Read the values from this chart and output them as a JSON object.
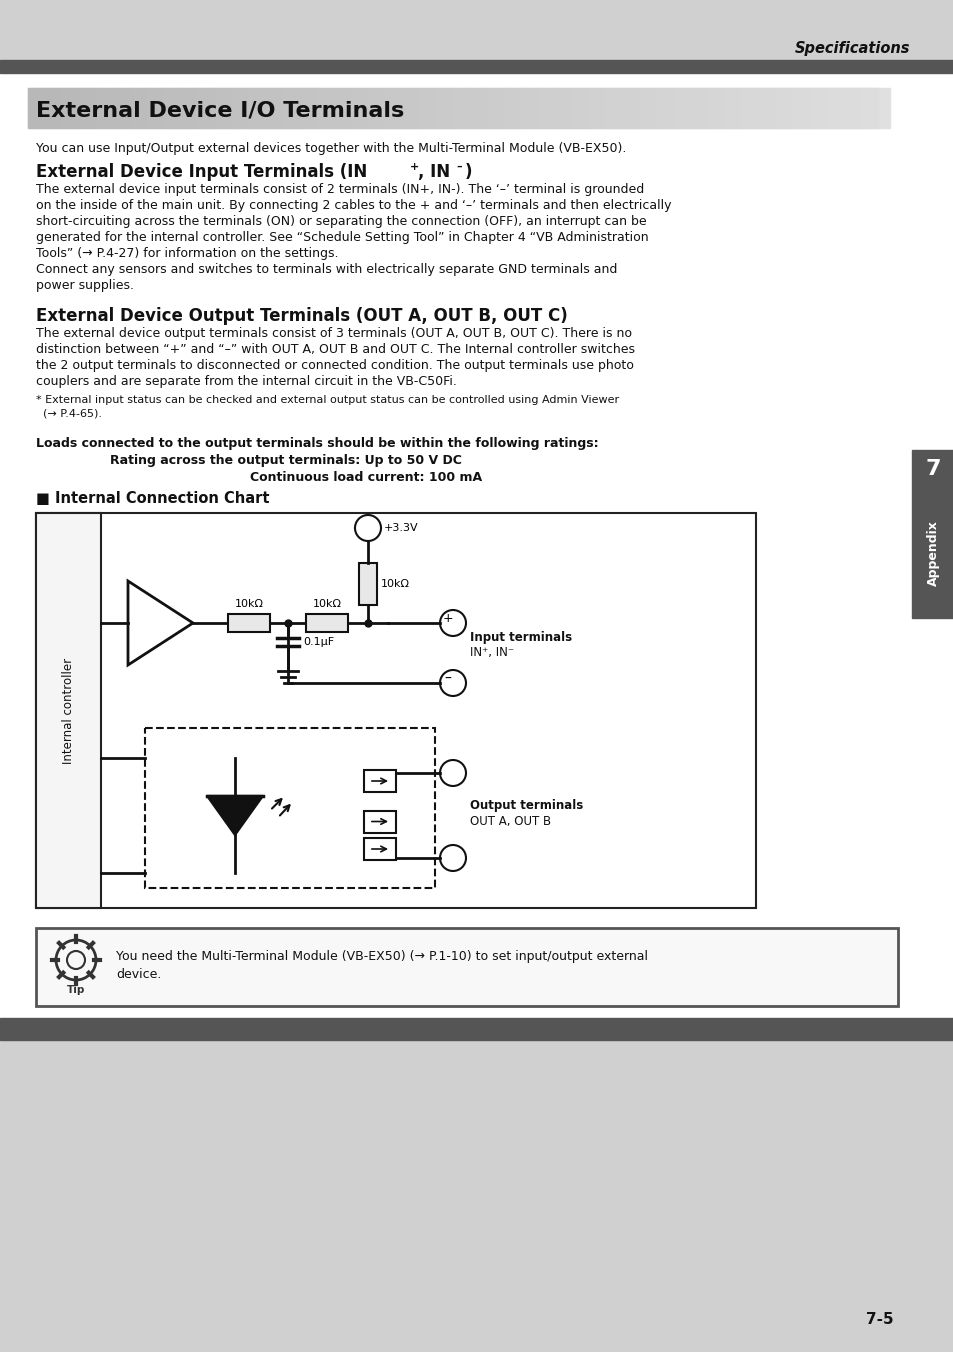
{
  "page_bg": "#ffffff",
  "header_text": "Specifications",
  "main_title": "External Device I/O Terminals",
  "intro_text": "You can use Input/Output external devices together with the Multi-Terminal Module (VB-EX50).",
  "section1_title_main": "External Device Input Terminals (IN",
  "section1_title_sup1": "+",
  "section1_title_mid": ", IN",
  "section1_title_sup2": "–",
  "section1_title_end": ")",
  "section1_lines": [
    "The external device input terminals consist of 2 terminals (IN+, IN-). The ‘–’ terminal is grounded",
    "on the inside of the main unit. By connecting 2 cables to the + and ‘–’ terminals and then electrically",
    "short-circuiting across the terminals (ON) or separating the connection (OFF), an interrupt can be",
    "generated for the internal controller. See “Schedule Setting Tool” in Chapter 4 “VB Administration",
    "Tools” (→ P.4-27) for information on the settings.",
    "Connect any sensors and switches to terminals with electrically separate GND terminals and",
    "power supplies."
  ],
  "section2_title": "External Device Output Terminals (OUT A, OUT B, OUT C)",
  "section2_lines": [
    "The external device output terminals consist of 3 terminals (OUT A, OUT B, OUT C). There is no",
    "distinction between “+” and “–” with OUT A, OUT B and OUT C. The Internal controller switches",
    "the 2 output terminals to disconnected or connected condition. The output terminals use photo",
    "couplers and are separate from the internal circuit in the VB-C50Fi."
  ],
  "footnote_lines": [
    "* External input status can be checked and external output status can be controlled using Admin Viewer",
    "  (→ P.4-65)."
  ],
  "ratings_line": "Loads connected to the output terminals should be within the following ratings:",
  "rating1": "Rating across the output terminals: Up to 50 V DC",
  "rating2": "Continuous load current: 100 mA",
  "chart_title": "■ Internal Connection Chart",
  "tip_text_line1": "You need the Multi-Terminal Module (VB-EX50) (→ P.1-10) to set input/output external",
  "tip_text_line2": "device.",
  "page_number": "7-5",
  "sidebar_number": "7",
  "sidebar_label": "Appendix"
}
